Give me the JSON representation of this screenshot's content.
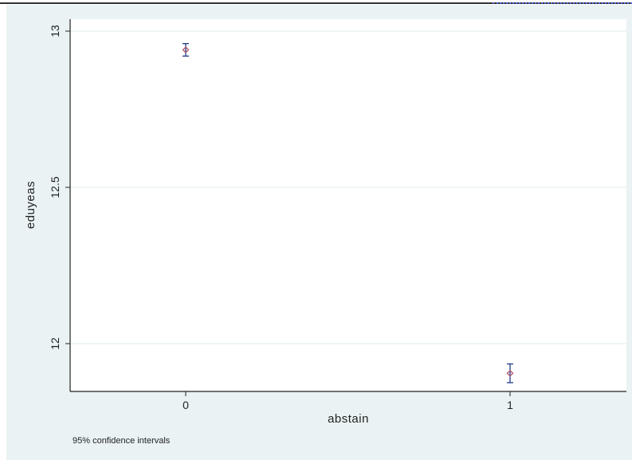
{
  "chart_data": {
    "type": "scatter",
    "xlabel": "abstain",
    "ylabel": "eduyeas",
    "note": "95% confidence intervals",
    "categories": [
      "0",
      "1"
    ],
    "y_ticks": [
      "12",
      "12.5",
      "13"
    ],
    "ylim": [
      11.85,
      13.03
    ],
    "grid": true,
    "points": [
      {
        "x": "0",
        "mean": 12.94,
        "lower": 12.92,
        "upper": 12.96
      },
      {
        "x": "1",
        "mean": 11.905,
        "lower": 11.875,
        "upper": 11.935
      }
    ],
    "colors": {
      "plot_background": "#ffffff",
      "outer_background": "#eaf2f3",
      "marker": "#b05a70",
      "ci_bar": "#1f3a8a",
      "grid": "#dfe9ec",
      "axis": "#222222"
    }
  }
}
